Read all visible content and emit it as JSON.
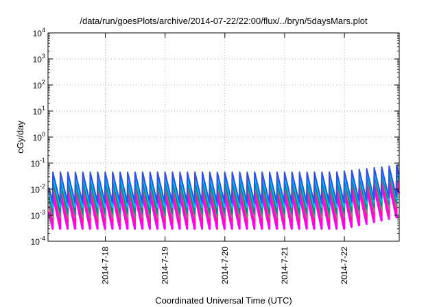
{
  "chart_data": {
    "type": "line",
    "title": "/data/run/goesPlots/archive/2014-07-22/22:00/flux/../bryn/5daysMars.plot",
    "xlabel": "Coordinated Universal Time (UTC)",
    "ylabel": "cGy/day",
    "yscale": "log",
    "ylim": [
      0.0001,
      10000
    ],
    "xlim": [
      "2014-07-17 01:00",
      "2014-07-22 22:00"
    ],
    "grid": true,
    "ytick_labels": [
      {
        "base": "10",
        "exp": "-4"
      },
      {
        "base": "10",
        "exp": "-3"
      },
      {
        "base": "10",
        "exp": "-2"
      },
      {
        "base": "10",
        "exp": "-1"
      },
      {
        "base": "10",
        "exp": "0"
      },
      {
        "base": "10",
        "exp": "1"
      },
      {
        "base": "10",
        "exp": "2"
      },
      {
        "base": "10",
        "exp": "3"
      },
      {
        "base": "10",
        "exp": "4"
      }
    ],
    "xtick_labels": [
      "2014-7-18",
      "2014-7-19",
      "2014-7-20",
      "2014-7-21",
      "2014-7-22"
    ],
    "xtick_dates": [
      "2014-07-18 00:00",
      "2014-07-19 00:00",
      "2014-07-20 00:00",
      "2014-07-21 00:00",
      "2014-07-22 00:00"
    ],
    "sawtooth_period_hours": 3,
    "series": [
      {
        "color": "#ff00ff",
        "peak": 0.006,
        "trough": 0.0003,
        "peak_end": 0.02
      },
      {
        "color": "#ff1493",
        "peak": 0.01,
        "trough": 0.0005,
        "peak_end": 0.03
      },
      {
        "color": "#808080",
        "peak": 0.015,
        "trough": 0.0008,
        "peak_end": 0.045
      },
      {
        "color": "#008b8b",
        "peak": 0.02,
        "trough": 0.0012,
        "peak_end": 0.06
      },
      {
        "color": "#00bfff",
        "peak": 0.03,
        "trough": 0.002,
        "peak_end": 0.07
      },
      {
        "color": "#3050e0",
        "peak": 0.045,
        "trough": 0.003,
        "peak_end": 0.085
      }
    ]
  }
}
